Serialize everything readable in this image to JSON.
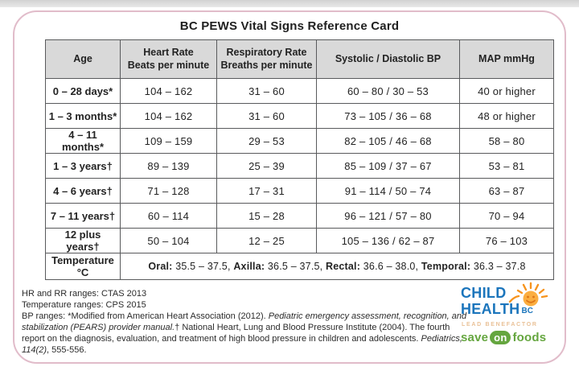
{
  "card": {
    "title": "BC PEWS Vital Signs Reference Card"
  },
  "table": {
    "header_lines": [
      [
        "Age"
      ],
      [
        "Heart Rate",
        "Beats per minute"
      ],
      [
        "Respiratory Rate",
        "Breaths per minute"
      ],
      [
        "Systolic / Diastolic BP"
      ],
      [
        "MAP mmHg"
      ]
    ],
    "rows": [
      {
        "age": "0 – 28 days*",
        "heart_rate": "104 – 162",
        "respiratory_rate": "31 – 60",
        "bp": "60 – 80 / 30 – 53",
        "map": "40 or higher"
      },
      {
        "age": "1 – 3 months*",
        "heart_rate": "104 – 162",
        "respiratory_rate": "31 – 60",
        "bp": "73 – 105 / 36 – 68",
        "map": "48 or higher"
      },
      {
        "age": "4 – 11 months*",
        "heart_rate": "109 – 159",
        "respiratory_rate": "29 – 53",
        "bp": "82 – 105 / 46 – 68",
        "map": "58 – 80"
      },
      {
        "age": "1 – 3 years†",
        "heart_rate": "89 – 139",
        "respiratory_rate": "25 – 39",
        "bp": "85 – 109 / 37 – 67",
        "map": "53 – 81"
      },
      {
        "age": "4 – 6 years†",
        "heart_rate": "71 – 128",
        "respiratory_rate": "17 – 31",
        "bp": "91 – 114 / 50 – 74",
        "map": "63 – 87"
      },
      {
        "age": "7 – 11 years†",
        "heart_rate": "60 – 114",
        "respiratory_rate": "15 – 28",
        "bp": "96 – 121 / 57 – 80",
        "map": "70 – 94"
      },
      {
        "age": "12 plus years†",
        "heart_rate": "50 – 104",
        "respiratory_rate": "12 – 25",
        "bp": "105 – 136 / 62 – 87",
        "map": "76 – 103"
      }
    ],
    "temperature_row": {
      "label": "Temperature °C",
      "segments": [
        {
          "label": "Oral:",
          "value": " 35.5 – 37.5, "
        },
        {
          "label": "Axilla:",
          "value": " 36.5 – 37.5, "
        },
        {
          "label": "Rectal:",
          "value": " 36.6 – 38.0, "
        },
        {
          "label": "Temporal:",
          "value": " 36.3 – 37.8"
        }
      ]
    }
  },
  "footnotes": {
    "hr_rr": "HR and RR ranges: CTAS 2013",
    "temperature": "Temperature ranges: CPS 2015",
    "bp_segments": [
      {
        "text": "BP ranges: *Modified from American Heart Association (2012). ",
        "italic": false
      },
      {
        "text": "Pediatric emergency assessment, recognition, and stabilization (PEARS) provider manual.",
        "italic": true
      },
      {
        "text": "† National Heart, Lung and Blood Pressure Institute (2004). The fourth report on the diagnosis, evaluation, and treatment of high blood pressure in children and adolescents. ",
        "italic": false
      },
      {
        "text": "Pediatrics, 114(2)",
        "italic": true
      },
      {
        "text": ", 555-556.",
        "italic": false
      }
    ]
  },
  "logo": {
    "line1": "CHILD",
    "line2": "HEALTH",
    "line2_suffix": "BC",
    "sun_icon": "smiling-sun-icon",
    "benefactor": "LEAD BENEFACTOR",
    "brand_word1": "save",
    "brand_word2": "on",
    "brand_word3": "foods",
    "colors": {
      "brand_blue": "#1B75BC",
      "sun_orange": "#F7941E",
      "benefactor_tan": "#E9C197",
      "saveon_green": "#65A63F"
    }
  },
  "colors": {
    "card_border": "#E1BCCA",
    "table_header_bg": "#D9D9D9",
    "table_border": "#595A5C",
    "text": "#232323",
    "top_strip": "#D2D2D2"
  }
}
